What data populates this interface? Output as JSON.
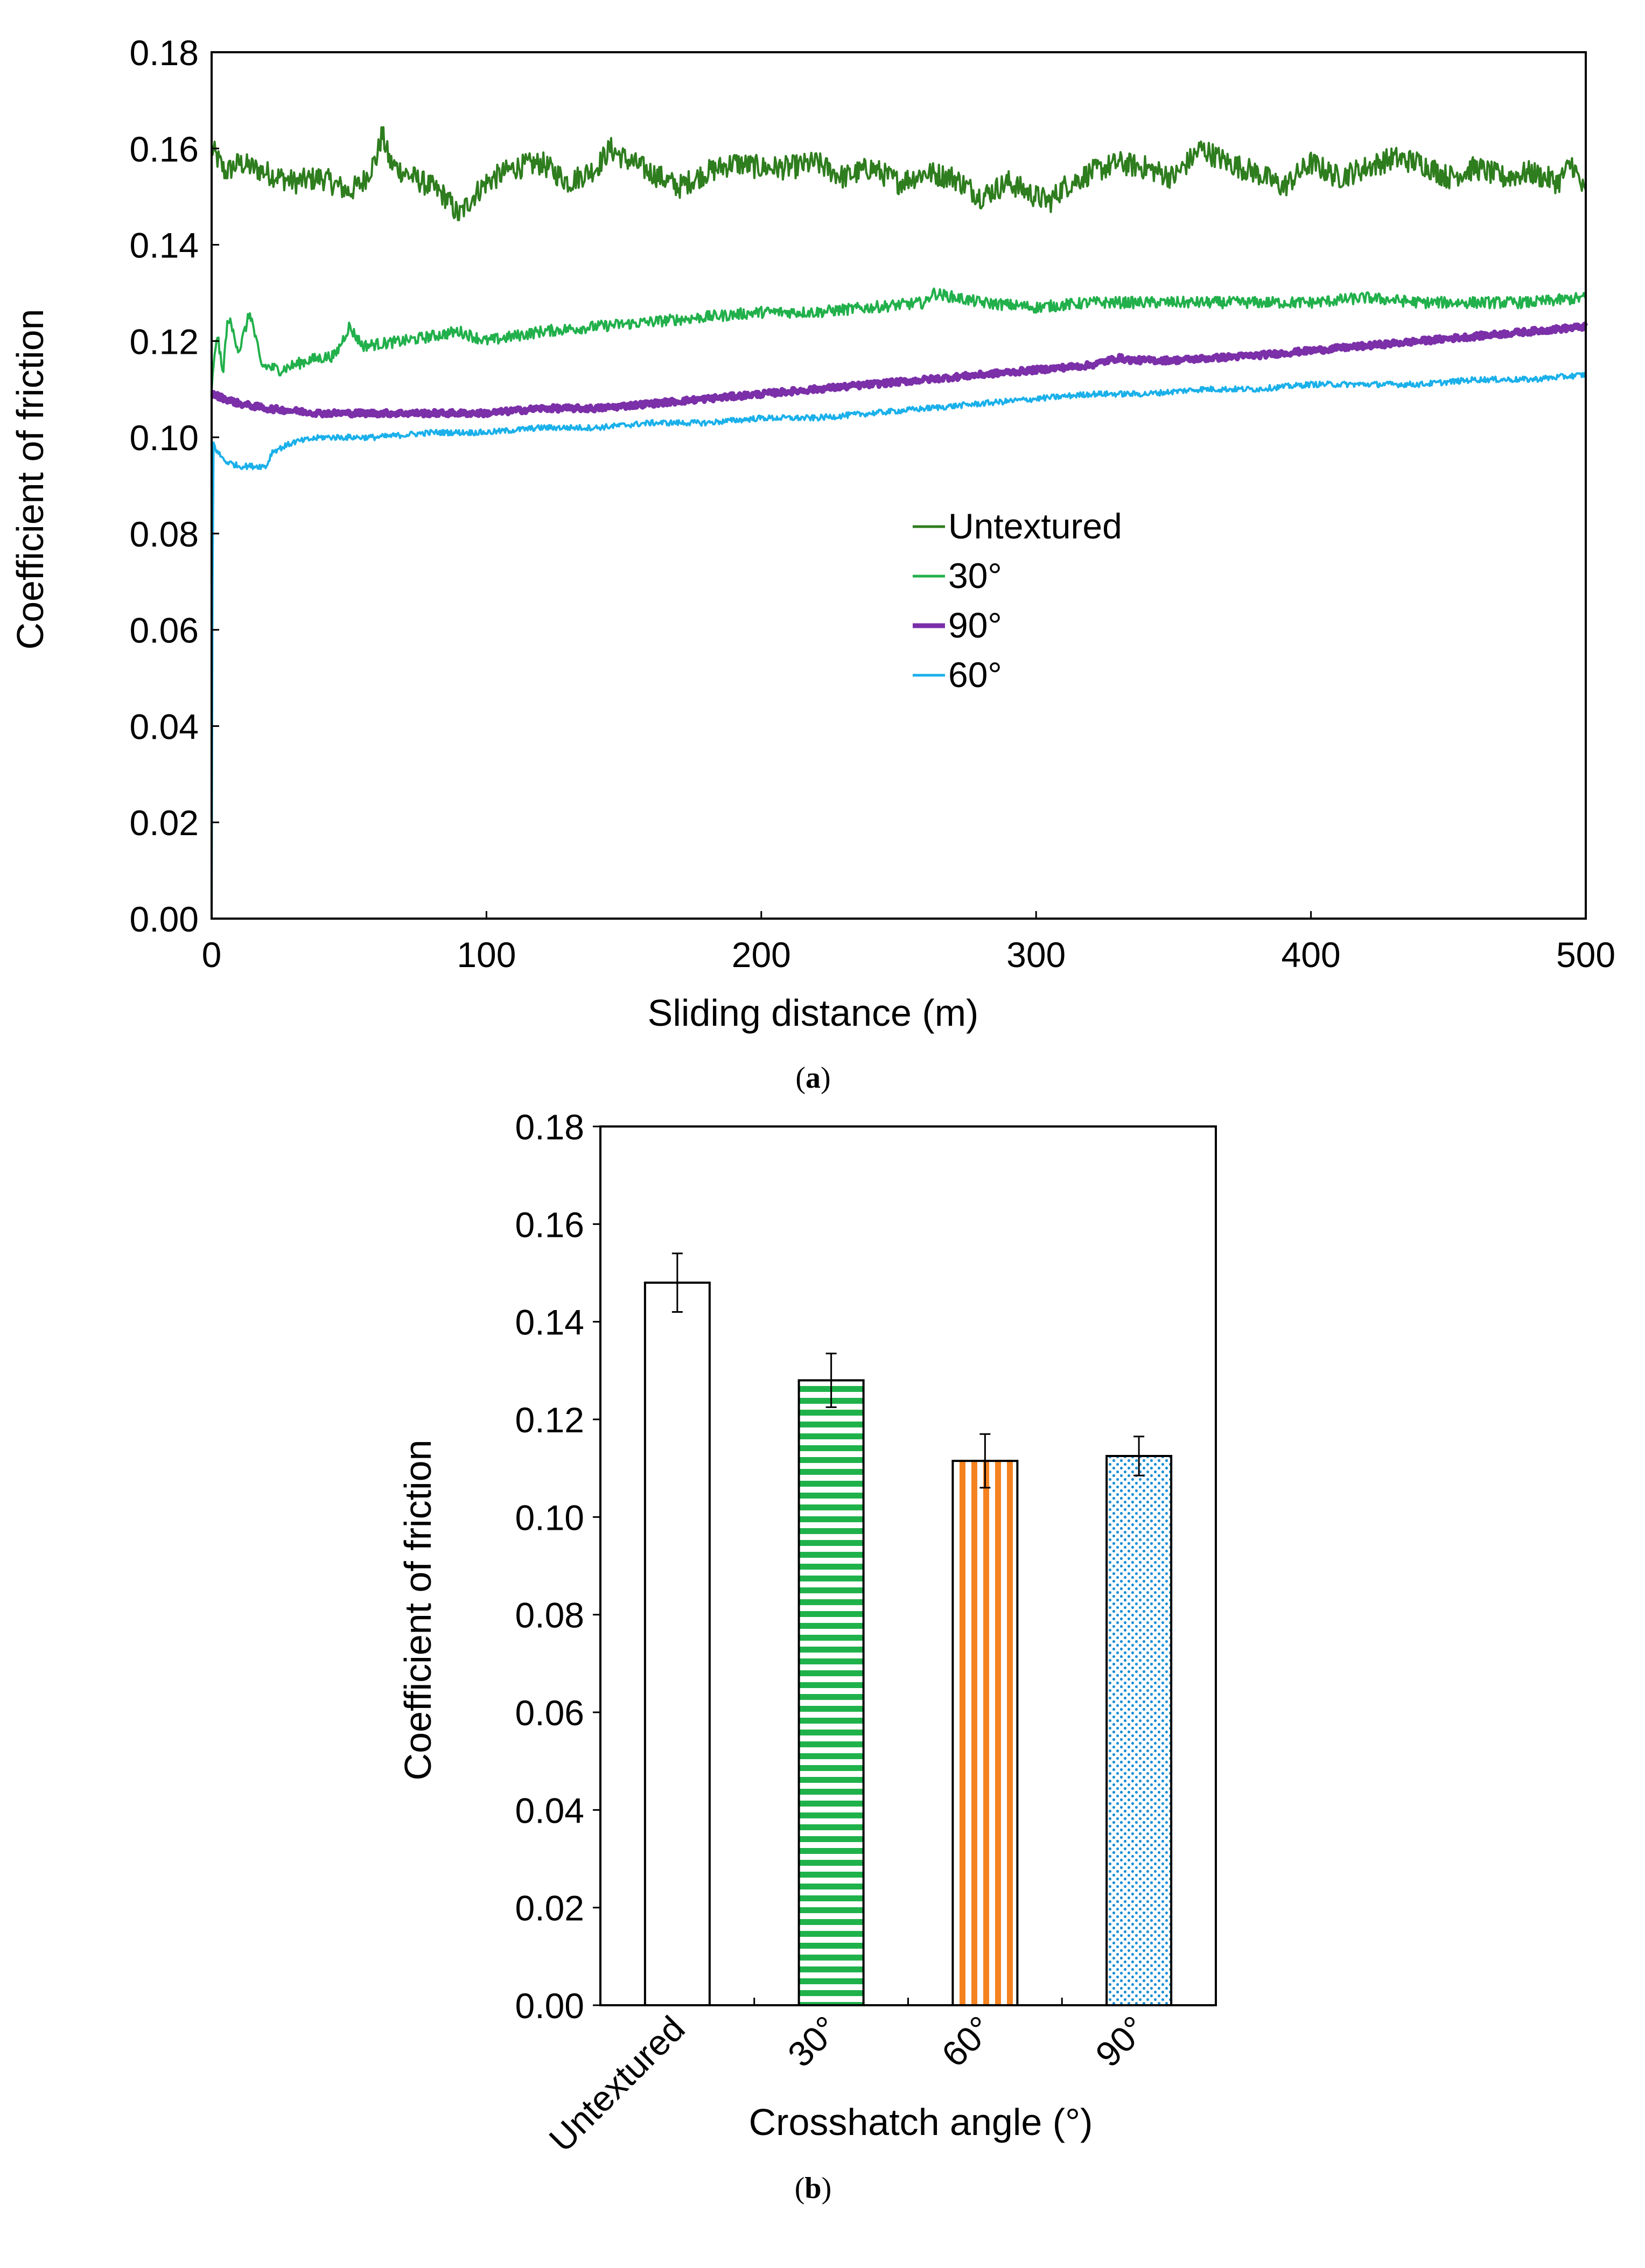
{
  "chart_data": [
    {
      "type": "line",
      "panel_label": "a",
      "title": "",
      "xlabel": "Sliding distance (m)",
      "ylabel": "Coefficient of friction",
      "xlim": [
        0,
        500
      ],
      "ylim": [
        0,
        0.18
      ],
      "x_ticks": [
        "0",
        "100",
        "200",
        "300",
        "400",
        "500"
      ],
      "y_ticks": [
        "0.00",
        "0.02",
        "0.04",
        "0.06",
        "0.08",
        "0.10",
        "0.12",
        "0.14",
        "0.16",
        "0.18"
      ],
      "grid": false,
      "legend_position": "center-right",
      "series": [
        {
          "name": "Untextured",
          "color": "#2e7d1e",
          "points": [
            [
              0,
              0.16
            ],
            [
              5,
              0.155
            ],
            [
              10,
              0.157
            ],
            [
              20,
              0.155
            ],
            [
              30,
              0.153
            ],
            [
              40,
              0.154
            ],
            [
              50,
              0.151
            ],
            [
              55,
              0.153
            ],
            [
              60,
              0.158
            ],
            [
              62,
              0.163
            ],
            [
              65,
              0.157
            ],
            [
              70,
              0.155
            ],
            [
              80,
              0.152
            ],
            [
              85,
              0.15
            ],
            [
              90,
              0.146
            ],
            [
              95,
              0.15
            ],
            [
              100,
              0.153
            ],
            [
              110,
              0.156
            ],
            [
              120,
              0.157
            ],
            [
              130,
              0.153
            ],
            [
              140,
              0.156
            ],
            [
              145,
              0.16
            ],
            [
              150,
              0.158
            ],
            [
              160,
              0.155
            ],
            [
              170,
              0.152
            ],
            [
              180,
              0.155
            ],
            [
              190,
              0.157
            ],
            [
              200,
              0.156
            ],
            [
              210,
              0.156
            ],
            [
              220,
              0.157
            ],
            [
              230,
              0.154
            ],
            [
              240,
              0.156
            ],
            [
              250,
              0.153
            ],
            [
              260,
              0.155
            ],
            [
              270,
              0.154
            ],
            [
              280,
              0.15
            ],
            [
              290,
              0.153
            ],
            [
              300,
              0.15
            ],
            [
              305,
              0.149
            ],
            [
              310,
              0.152
            ],
            [
              320,
              0.155
            ],
            [
              330,
              0.157
            ],
            [
              340,
              0.156
            ],
            [
              350,
              0.154
            ],
            [
              360,
              0.16
            ],
            [
              370,
              0.157
            ],
            [
              380,
              0.155
            ],
            [
              390,
              0.152
            ],
            [
              400,
              0.157
            ],
            [
              410,
              0.154
            ],
            [
              420,
              0.156
            ],
            [
              430,
              0.158
            ],
            [
              440,
              0.157
            ],
            [
              450,
              0.154
            ],
            [
              460,
              0.156
            ],
            [
              470,
              0.154
            ],
            [
              480,
              0.155
            ],
            [
              490,
              0.153
            ],
            [
              495,
              0.157
            ],
            [
              500,
              0.15
            ]
          ],
          "noise": 0.0025
        },
        {
          "name": "30°",
          "color": "#21b04b",
          "points": [
            [
              0,
              0.11
            ],
            [
              2,
              0.122
            ],
            [
              4,
              0.113
            ],
            [
              6,
              0.125
            ],
            [
              10,
              0.118
            ],
            [
              14,
              0.126
            ],
            [
              18,
              0.115
            ],
            [
              25,
              0.114
            ],
            [
              35,
              0.116
            ],
            [
              45,
              0.117
            ],
            [
              50,
              0.123
            ],
            [
              55,
              0.119
            ],
            [
              70,
              0.12
            ],
            [
              90,
              0.122
            ],
            [
              100,
              0.12
            ],
            [
              120,
              0.122
            ],
            [
              140,
              0.123
            ],
            [
              160,
              0.124
            ],
            [
              180,
              0.125
            ],
            [
              200,
              0.126
            ],
            [
              220,
              0.126
            ],
            [
              240,
              0.127
            ],
            [
              260,
              0.128
            ],
            [
              262,
              0.13
            ],
            [
              280,
              0.128
            ],
            [
              300,
              0.127
            ],
            [
              320,
              0.128
            ],
            [
              340,
              0.128
            ],
            [
              360,
              0.128
            ],
            [
              380,
              0.128
            ],
            [
              400,
              0.128
            ],
            [
              420,
              0.129
            ],
            [
              440,
              0.128
            ],
            [
              460,
              0.128
            ],
            [
              480,
              0.128
            ],
            [
              500,
              0.129
            ]
          ],
          "noise": 0.0012
        },
        {
          "name": "90°",
          "color": "#7b2fa8",
          "points": [
            [
              0,
              0.109
            ],
            [
              10,
              0.107
            ],
            [
              20,
              0.106
            ],
            [
              40,
              0.105
            ],
            [
              60,
              0.105
            ],
            [
              80,
              0.105
            ],
            [
              100,
              0.105
            ],
            [
              120,
              0.106
            ],
            [
              140,
              0.106
            ],
            [
              160,
              0.107
            ],
            [
              180,
              0.108
            ],
            [
              200,
              0.109
            ],
            [
              220,
              0.11
            ],
            [
              240,
              0.111
            ],
            [
              260,
              0.112
            ],
            [
              280,
              0.113
            ],
            [
              300,
              0.114
            ],
            [
              320,
              0.115
            ],
            [
              330,
              0.1165
            ],
            [
              335,
              0.116
            ],
            [
              350,
              0.116
            ],
            [
              380,
              0.117
            ],
            [
              400,
              0.118
            ],
            [
              420,
              0.119
            ],
            [
              440,
              0.12
            ],
            [
              460,
              0.121
            ],
            [
              480,
              0.122
            ],
            [
              500,
              0.123
            ]
          ],
          "noise": 0.0006
        },
        {
          "name": "60°",
          "color": "#1ab0ea",
          "points": [
            [
              0,
              0.0
            ],
            [
              0.5,
              0.099
            ],
            [
              2,
              0.097
            ],
            [
              5,
              0.095
            ],
            [
              10,
              0.094
            ],
            [
              20,
              0.094
            ],
            [
              22,
              0.097
            ],
            [
              30,
              0.099
            ],
            [
              40,
              0.1
            ],
            [
              60,
              0.1
            ],
            [
              80,
              0.101
            ],
            [
              100,
              0.101
            ],
            [
              120,
              0.102
            ],
            [
              140,
              0.102
            ],
            [
              160,
              0.103
            ],
            [
              180,
              0.103
            ],
            [
              200,
              0.104
            ],
            [
              220,
              0.104
            ],
            [
              240,
              0.105
            ],
            [
              260,
              0.106
            ],
            [
              280,
              0.107
            ],
            [
              300,
              0.108
            ],
            [
              320,
              0.109
            ],
            [
              340,
              0.109
            ],
            [
              360,
              0.11
            ],
            [
              380,
              0.11
            ],
            [
              400,
              0.111
            ],
            [
              420,
              0.111
            ],
            [
              440,
              0.111
            ],
            [
              460,
              0.112
            ],
            [
              480,
              0.112
            ],
            [
              500,
              0.113
            ]
          ],
          "noise": 0.0006
        }
      ]
    },
    {
      "type": "bar",
      "panel_label": "b",
      "title": "",
      "xlabel": "Crosshatch angle (°)",
      "ylabel": "Coefficient of friction",
      "ylim": [
        0,
        0.18
      ],
      "y_ticks": [
        "0.00",
        "0.02",
        "0.04",
        "0.06",
        "0.08",
        "0.10",
        "0.12",
        "0.14",
        "0.16",
        "0.18"
      ],
      "categories": [
        "Untextured",
        "30°",
        "60°",
        "90°"
      ],
      "values": [
        0.148,
        0.128,
        0.1115,
        0.1125
      ],
      "errors": [
        0.006,
        0.0055,
        0.0055,
        0.004
      ],
      "fills": [
        "none",
        "horizontal-stripes",
        "vertical-stripes",
        "dots"
      ],
      "colors": [
        "#ffffff",
        "#1fb24b",
        "#f58220",
        "#1b8fd6"
      ],
      "grid": false
    }
  ]
}
